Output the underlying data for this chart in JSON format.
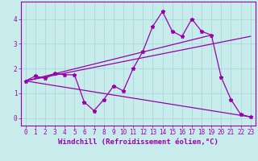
{
  "title": "",
  "xlabel": "Windchill (Refroidissement éolien,°C)",
  "bg_color": "#c8ecec",
  "line_color": "#9900aa",
  "grid_color": "#a8d8d8",
  "xlim": [
    -0.5,
    23.5
  ],
  "ylim": [
    -0.3,
    4.7
  ],
  "xticks": [
    0,
    1,
    2,
    3,
    4,
    5,
    6,
    7,
    8,
    9,
    10,
    11,
    12,
    13,
    14,
    15,
    16,
    17,
    18,
    19,
    20,
    21,
    22,
    23
  ],
  "yticks": [
    0,
    1,
    2,
    3,
    4
  ],
  "series1_x": [
    0,
    1,
    2,
    3,
    4,
    5,
    6,
    7,
    8,
    9,
    10,
    11,
    12,
    13,
    14,
    15,
    16,
    17,
    18,
    19,
    20,
    21,
    22,
    23
  ],
  "series1_y": [
    1.5,
    1.7,
    1.6,
    1.8,
    1.75,
    1.75,
    0.65,
    0.3,
    0.75,
    1.3,
    1.1,
    2.0,
    2.7,
    3.7,
    4.3,
    3.5,
    3.3,
    4.0,
    3.5,
    3.35,
    1.65,
    0.75,
    0.15,
    0.05
  ],
  "series2_x": [
    0,
    23
  ],
  "series2_y": [
    1.5,
    3.3
  ],
  "series3_x": [
    0,
    23
  ],
  "series3_y": [
    1.5,
    0.05
  ],
  "series4_x": [
    0,
    19
  ],
  "series4_y": [
    1.5,
    3.35
  ],
  "tick_fontsize": 5.5,
  "label_fontsize": 6.5,
  "linewidth": 0.9,
  "markersize": 3.5
}
